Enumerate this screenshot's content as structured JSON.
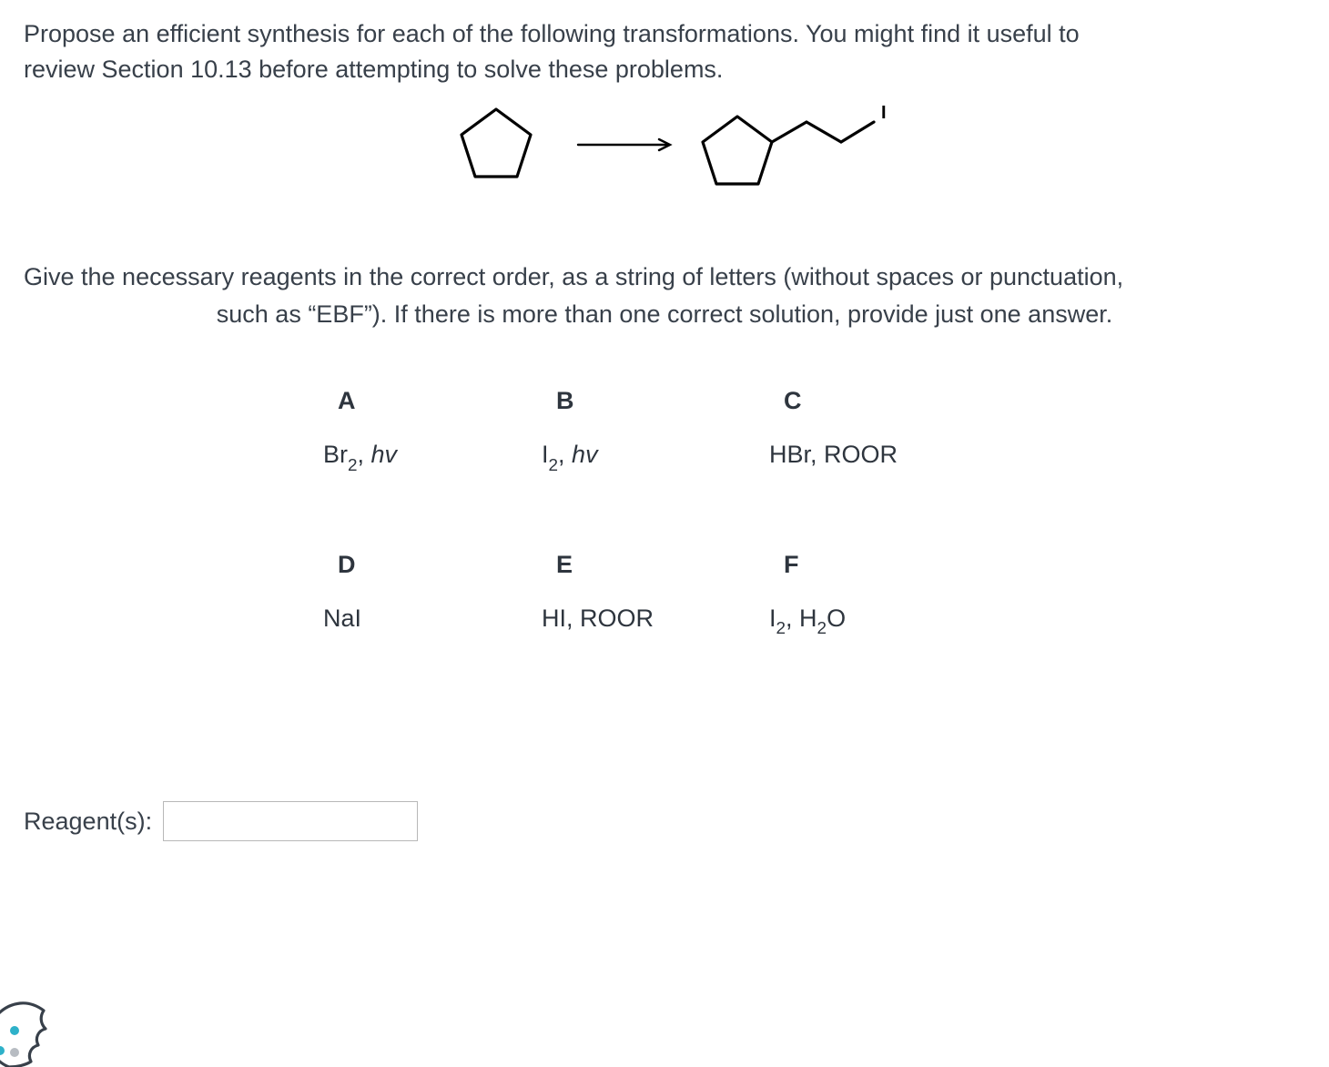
{
  "prompt": {
    "line1": "Propose an efficient synthesis for each of the following transformations. You might find it useful to",
    "line2": "review Section 10.13 before attempting to solve these problems."
  },
  "instruction": {
    "line1": "Give the necessary reagents in the correct order, as a string of letters (without spaces or punctuation,",
    "line2": "such as “EBF”). If there is more than one correct solution, provide just one answer."
  },
  "reagents": {
    "A": {
      "letter": "A",
      "label_html": "Br<span class='sub'>2</span>, <em>hv</em>"
    },
    "B": {
      "letter": "B",
      "label_html": "I<span class='sub'>2</span>, <em>hv</em>"
    },
    "C": {
      "letter": "C",
      "label_html": "HBr, ROOR"
    },
    "D": {
      "letter": "D",
      "label_html": "NaI"
    },
    "E": {
      "letter": "E",
      "label_html": "HI, ROOR"
    },
    "F": {
      "letter": "F",
      "label_html": "I<span class='sub'>2</span>, H<span class='sub'>2</span>O"
    }
  },
  "answer": {
    "label": "Reagent(s):",
    "value": ""
  },
  "diagram": {
    "stroke": "#000000",
    "stroke_width": 3,
    "arrow_stroke": "#000000",
    "product_label": "I",
    "colors": {
      "background": "#ffffff"
    }
  },
  "cookie_icon": {
    "body_color": "#ffffff",
    "outline": "#38404a",
    "dot1": "#2eb1c9",
    "dot2": "#2eb1c9",
    "dot3": "#9aa0a6"
  }
}
